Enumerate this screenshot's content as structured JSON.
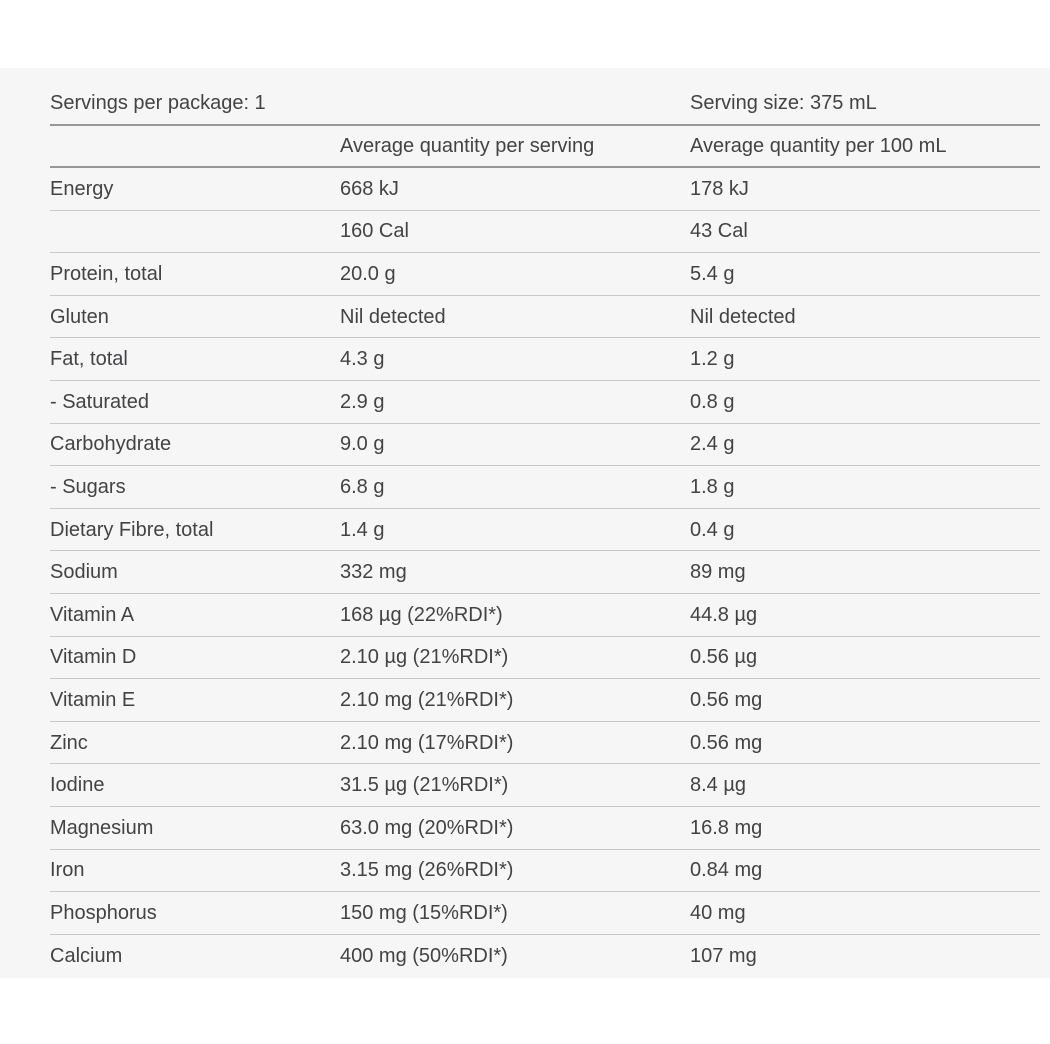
{
  "nutrition_panel": {
    "servings_per_package": "Servings per package: 1",
    "serving_size": "Serving size: 375 mL",
    "column_headers": {
      "per_serving": "Average quantity per serving",
      "per_100ml": "Average quantity per 100 mL"
    },
    "rows": [
      {
        "label": "Energy",
        "per_serving": "668 kJ",
        "per_100ml": "178 kJ"
      },
      {
        "label": "",
        "per_serving": "160 Cal",
        "per_100ml": "43 Cal"
      },
      {
        "label": "Protein, total",
        "per_serving": "20.0 g",
        "per_100ml": "5.4 g"
      },
      {
        "label": "Gluten",
        "per_serving": "Nil detected",
        "per_100ml": "Nil detected"
      },
      {
        "label": "Fat, total",
        "per_serving": "4.3 g",
        "per_100ml": "1.2 g"
      },
      {
        "label": "- Saturated",
        "per_serving": "2.9 g",
        "per_100ml": "0.8 g"
      },
      {
        "label": "Carbohydrate",
        "per_serving": "9.0 g",
        "per_100ml": "2.4 g"
      },
      {
        "label": "- Sugars",
        "per_serving": "6.8 g",
        "per_100ml": "1.8 g"
      },
      {
        "label": "Dietary Fibre, total",
        "per_serving": "1.4 g",
        "per_100ml": "0.4 g"
      },
      {
        "label": "Sodium",
        "per_serving": "332 mg",
        "per_100ml": "89 mg"
      },
      {
        "label": "Vitamin A",
        "per_serving": "168 µg (22%RDI*)",
        "per_100ml": "44.8 µg"
      },
      {
        "label": "Vitamin D",
        "per_serving": "2.10 µg (21%RDI*)",
        "per_100ml": "0.56 µg"
      },
      {
        "label": "Vitamin E",
        "per_serving": "2.10 mg (21%RDI*)",
        "per_100ml": "0.56 mg"
      },
      {
        "label": "Zinc",
        "per_serving": "2.10 mg (17%RDI*)",
        "per_100ml": "0.56 mg"
      },
      {
        "label": "Iodine",
        "per_serving": "31.5 µg (21%RDI*)",
        "per_100ml": "8.4 µg"
      },
      {
        "label": "Magnesium",
        "per_serving": "63.0 mg (20%RDI*)",
        "per_100ml": "16.8 mg"
      },
      {
        "label": "Iron",
        "per_serving": "3.15 mg (26%RDI*)",
        "per_100ml": "0.84 mg"
      },
      {
        "label": "Phosphorus",
        "per_serving": "150 mg (15%RDI*)",
        "per_100ml": "40 mg"
      },
      {
        "label": "Calcium",
        "per_serving": "400 mg (50%RDI*)",
        "per_100ml": "107 mg"
      }
    ]
  }
}
